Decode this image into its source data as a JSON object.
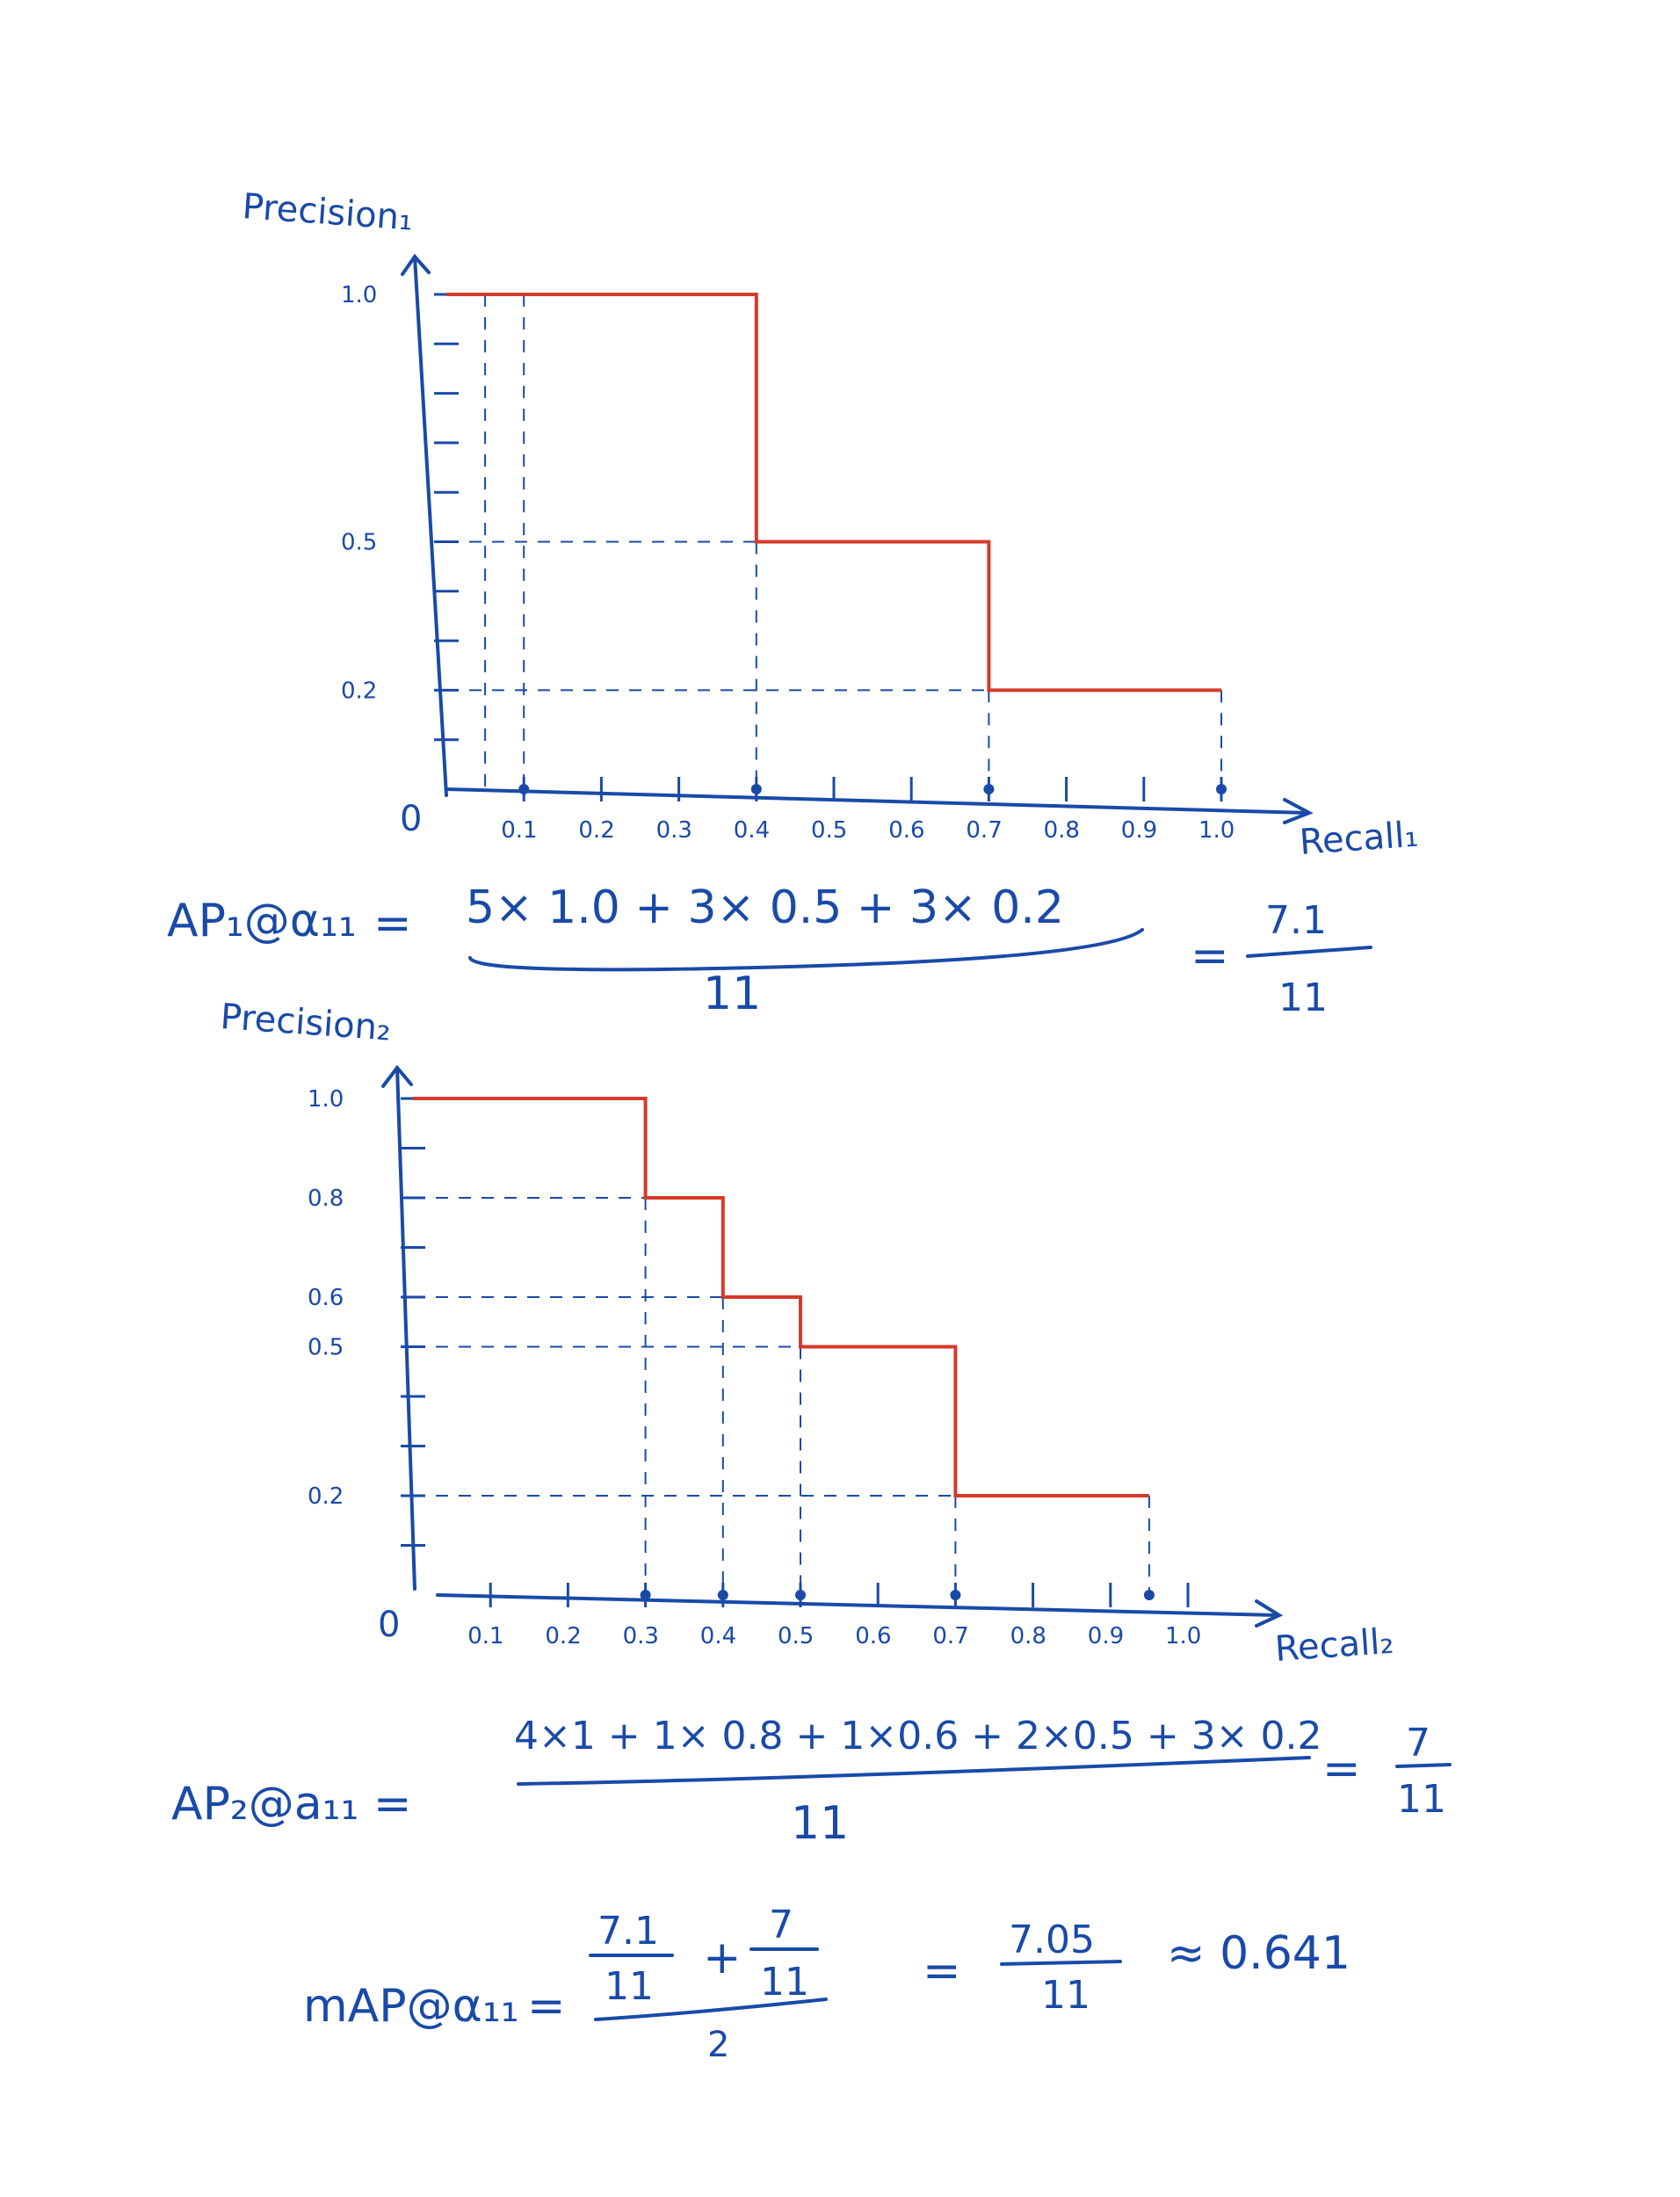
{
  "colors": {
    "ink": "#1a4aa8",
    "curve": "#d63a2a",
    "background": "#ffffff"
  },
  "chart_data": [
    {
      "type": "line",
      "step": true,
      "ylabel": "Precision₁",
      "xlabel": "Recall₁",
      "origin_label": "0",
      "x_ticks": [
        "0.1",
        "0.2",
        "0.3",
        "0.4",
        "0.5",
        "0.6",
        "0.7",
        "0.8",
        "0.9",
        "1.0"
      ],
      "y_ticks": [
        "1.0",
        "0.5",
        "0.2"
      ],
      "xlim": [
        0,
        1.0
      ],
      "ylim": [
        0,
        1.0
      ],
      "x": [
        0.0,
        0.1,
        0.4,
        0.7,
        1.0
      ],
      "y": [
        1.0,
        1.0,
        0.5,
        0.2,
        0.2
      ],
      "marked_recall": [
        0.1,
        0.4,
        0.7,
        1.0
      ],
      "step_points": [
        [
          0.0,
          1.0
        ],
        [
          0.4,
          1.0
        ],
        [
          0.4,
          0.5
        ],
        [
          0.7,
          0.5
        ],
        [
          0.7,
          0.2
        ],
        [
          1.0,
          0.2
        ]
      ],
      "guides_x": [
        0.05,
        0.1,
        0.4,
        0.7,
        1.0
      ],
      "guides_y": [
        0.5,
        0.2
      ]
    },
    {
      "type": "line",
      "step": true,
      "ylabel": "Precision₂",
      "xlabel": "Recall₂",
      "origin_label": "0",
      "x_ticks": [
        "0.1",
        "0.2",
        "0.3",
        "0.4",
        "0.5",
        "0.6",
        "0.7",
        "0.8",
        "0.9",
        "1.0"
      ],
      "y_ticks": [
        "1.0",
        "0.8",
        "0.6",
        "0.5",
        "0.2"
      ],
      "xlim": [
        0,
        1.0
      ],
      "ylim": [
        0,
        1.0
      ],
      "step_points": [
        [
          0.0,
          1.0
        ],
        [
          0.3,
          1.0
        ],
        [
          0.3,
          0.8
        ],
        [
          0.4,
          0.8
        ],
        [
          0.4,
          0.6
        ],
        [
          0.5,
          0.6
        ],
        [
          0.5,
          0.5
        ],
        [
          0.7,
          0.5
        ],
        [
          0.7,
          0.2
        ],
        [
          0.95,
          0.2
        ]
      ],
      "marked_recall": [
        0.3,
        0.4,
        0.5,
        0.7,
        0.95
      ],
      "guides_x": [
        0.3,
        0.4,
        0.5,
        0.7,
        0.95
      ],
      "guides_y": [
        0.8,
        0.6,
        0.5,
        0.2
      ]
    }
  ],
  "equations": {
    "ap1_lhs": "AP₁@α₁₁",
    "ap1_eq": "=",
    "ap1_numerator": "5× 1.0 + 3× 0.5 + 3× 0.2",
    "ap1_denominator": "11",
    "ap1_result_eq": "=",
    "ap1_result_num": "7.1",
    "ap1_result_den": "11",
    "ap2_lhs": "AP₂@a₁₁ =",
    "ap2_numerator": "4×1 + 1× 0.8 + 1×0.6 + 2×0.5 + 3× 0.2",
    "ap2_denominator": "11",
    "ap2_result_eq": "=",
    "ap2_result_num": "7",
    "ap2_result_den": "11",
    "map_lhs": "mAP@α₁₁",
    "map_eq": "=",
    "map_frac1_num": "7.1",
    "map_frac1_den": "11",
    "map_plus": "+",
    "map_frac2_num": "7",
    "map_frac2_den": "11",
    "map_den": "2",
    "map_result_eq": "=",
    "map_result_num": "7.05",
    "map_result_den": "11",
    "map_approx": "≈ 0.641"
  }
}
